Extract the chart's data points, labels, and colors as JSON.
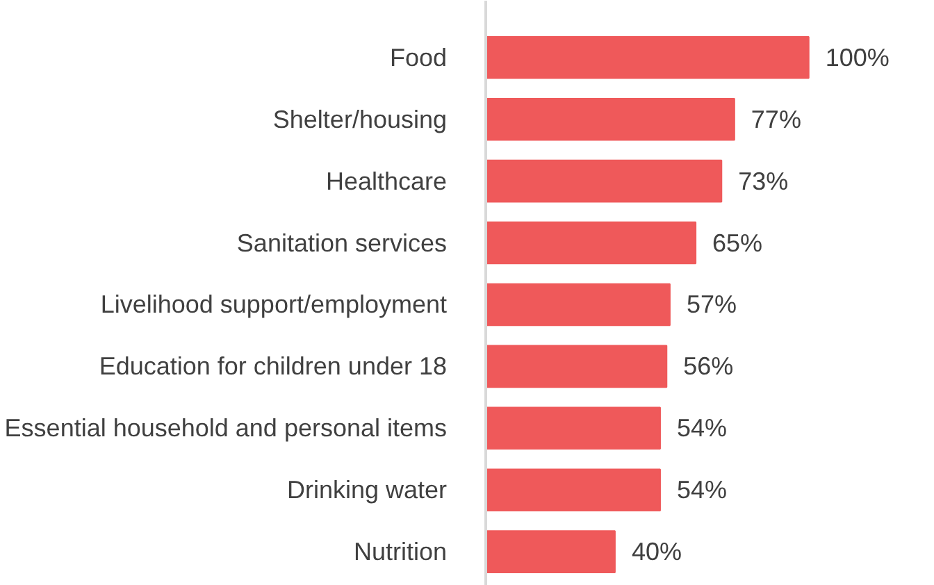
{
  "chart_data": {
    "type": "bar",
    "orientation": "horizontal",
    "categories": [
      "Food",
      "Shelter/housing",
      "Healthcare",
      "Sanitation services",
      "Livelihood support/employment",
      "Education for children under 18",
      "Essential household and personal items",
      "Drinking water",
      "Nutrition"
    ],
    "values": [
      100,
      77,
      73,
      65,
      57,
      56,
      54,
      54,
      40
    ],
    "value_labels": [
      "100%",
      "77%",
      "73%",
      "65%",
      "57%",
      "56%",
      "54%",
      "54%",
      "40%"
    ],
    "color": "#ef595a"
  }
}
